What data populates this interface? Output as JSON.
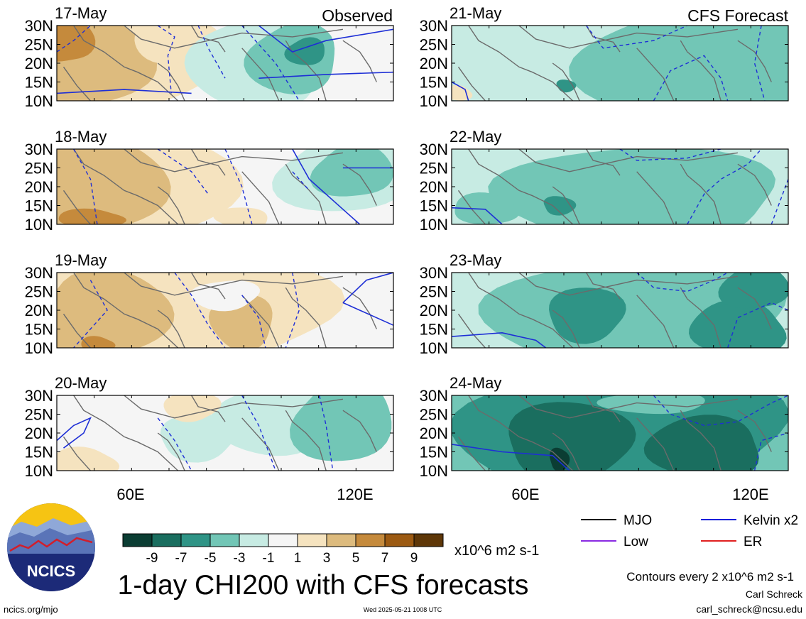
{
  "chart_data": {
    "type": "heatmap",
    "main_title": "1-day CHI200 with CFS forecasts",
    "units": "x10^6 m2 s-1",
    "contour_note": "Contours every 2 x10^6 m2 s-1",
    "columns": [
      {
        "label": "Observed",
        "x_ticks": [
          "60E",
          "120E"
        ]
      },
      {
        "label": "CFS Forecast",
        "x_ticks": [
          "60E",
          "120E"
        ]
      }
    ],
    "y_ticks": [
      "30N",
      "25N",
      "20N",
      "15N",
      "10N"
    ],
    "x_range_deg": [
      40,
      130
    ],
    "y_range_deg": [
      10,
      30
    ],
    "panels": [
      {
        "date": "17-May",
        "kind": "observed"
      },
      {
        "date": "18-May",
        "kind": "observed"
      },
      {
        "date": "19-May",
        "kind": "observed"
      },
      {
        "date": "20-May",
        "kind": "observed"
      },
      {
        "date": "21-May",
        "kind": "forecast"
      },
      {
        "date": "22-May",
        "kind": "forecast"
      },
      {
        "date": "23-May",
        "kind": "forecast"
      },
      {
        "date": "24-May",
        "kind": "forecast"
      }
    ],
    "colorbar": {
      "tick_labels": [
        "-9",
        "-7",
        "-5",
        "-3",
        "-1",
        "1",
        "3",
        "5",
        "7",
        "9"
      ],
      "colors": [
        "#0b3d33",
        "#1a6e5f",
        "#2f9486",
        "#72c6b6",
        "#c7ebe3",
        "#f5f5f5",
        "#f5e3bf",
        "#ddbb7e",
        "#c58a3c",
        "#9c5a12",
        "#5e3708"
      ]
    },
    "legend": [
      {
        "label": "MJO",
        "color": "#000000"
      },
      {
        "label": "Kelvin x2",
        "color": "#0b1edb"
      },
      {
        "label": "Low",
        "color": "#8a2be2"
      },
      {
        "label": "ER",
        "color": "#e02020"
      }
    ]
  },
  "footer": {
    "logo_text": "NCICS",
    "url": "ncics.org/mjo",
    "timestamp": "Wed 2025-05-21 1008 UTC",
    "author": "Carl Schreck",
    "email": "carl_schreck@ncsu.edu"
  }
}
